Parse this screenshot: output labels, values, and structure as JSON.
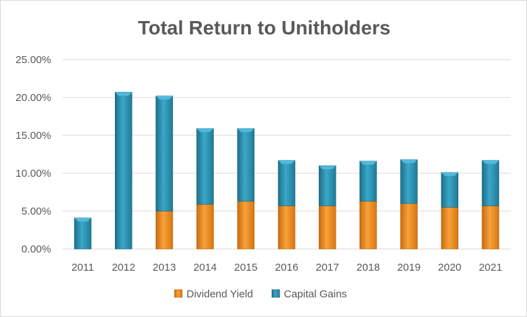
{
  "chart_data": {
    "type": "bar",
    "stacked": true,
    "title": "Total Return to Unitholders",
    "categories": [
      "2011",
      "2012",
      "2013",
      "2014",
      "2015",
      "2016",
      "2017",
      "2018",
      "2019",
      "2020",
      "2021"
    ],
    "series": [
      {
        "name": "Dividend Yield",
        "color": "#ED8A1F",
        "values": [
          0,
          0,
          5.0,
          5.9,
          6.3,
          5.7,
          5.7,
          6.3,
          6.0,
          5.5,
          5.7
        ]
      },
      {
        "name": "Capital Gains",
        "color": "#2A93B4",
        "values": [
          4.1,
          20.7,
          15.2,
          10.0,
          9.6,
          6.0,
          5.3,
          5.3,
          5.8,
          4.6,
          6.0
        ]
      }
    ],
    "yticks": [
      "0.00%",
      "5.00%",
      "10.00%",
      "15.00%",
      "20.00%",
      "25.00%"
    ],
    "ylim": [
      0,
      25
    ],
    "grid": true,
    "legend_position": "bottom"
  }
}
